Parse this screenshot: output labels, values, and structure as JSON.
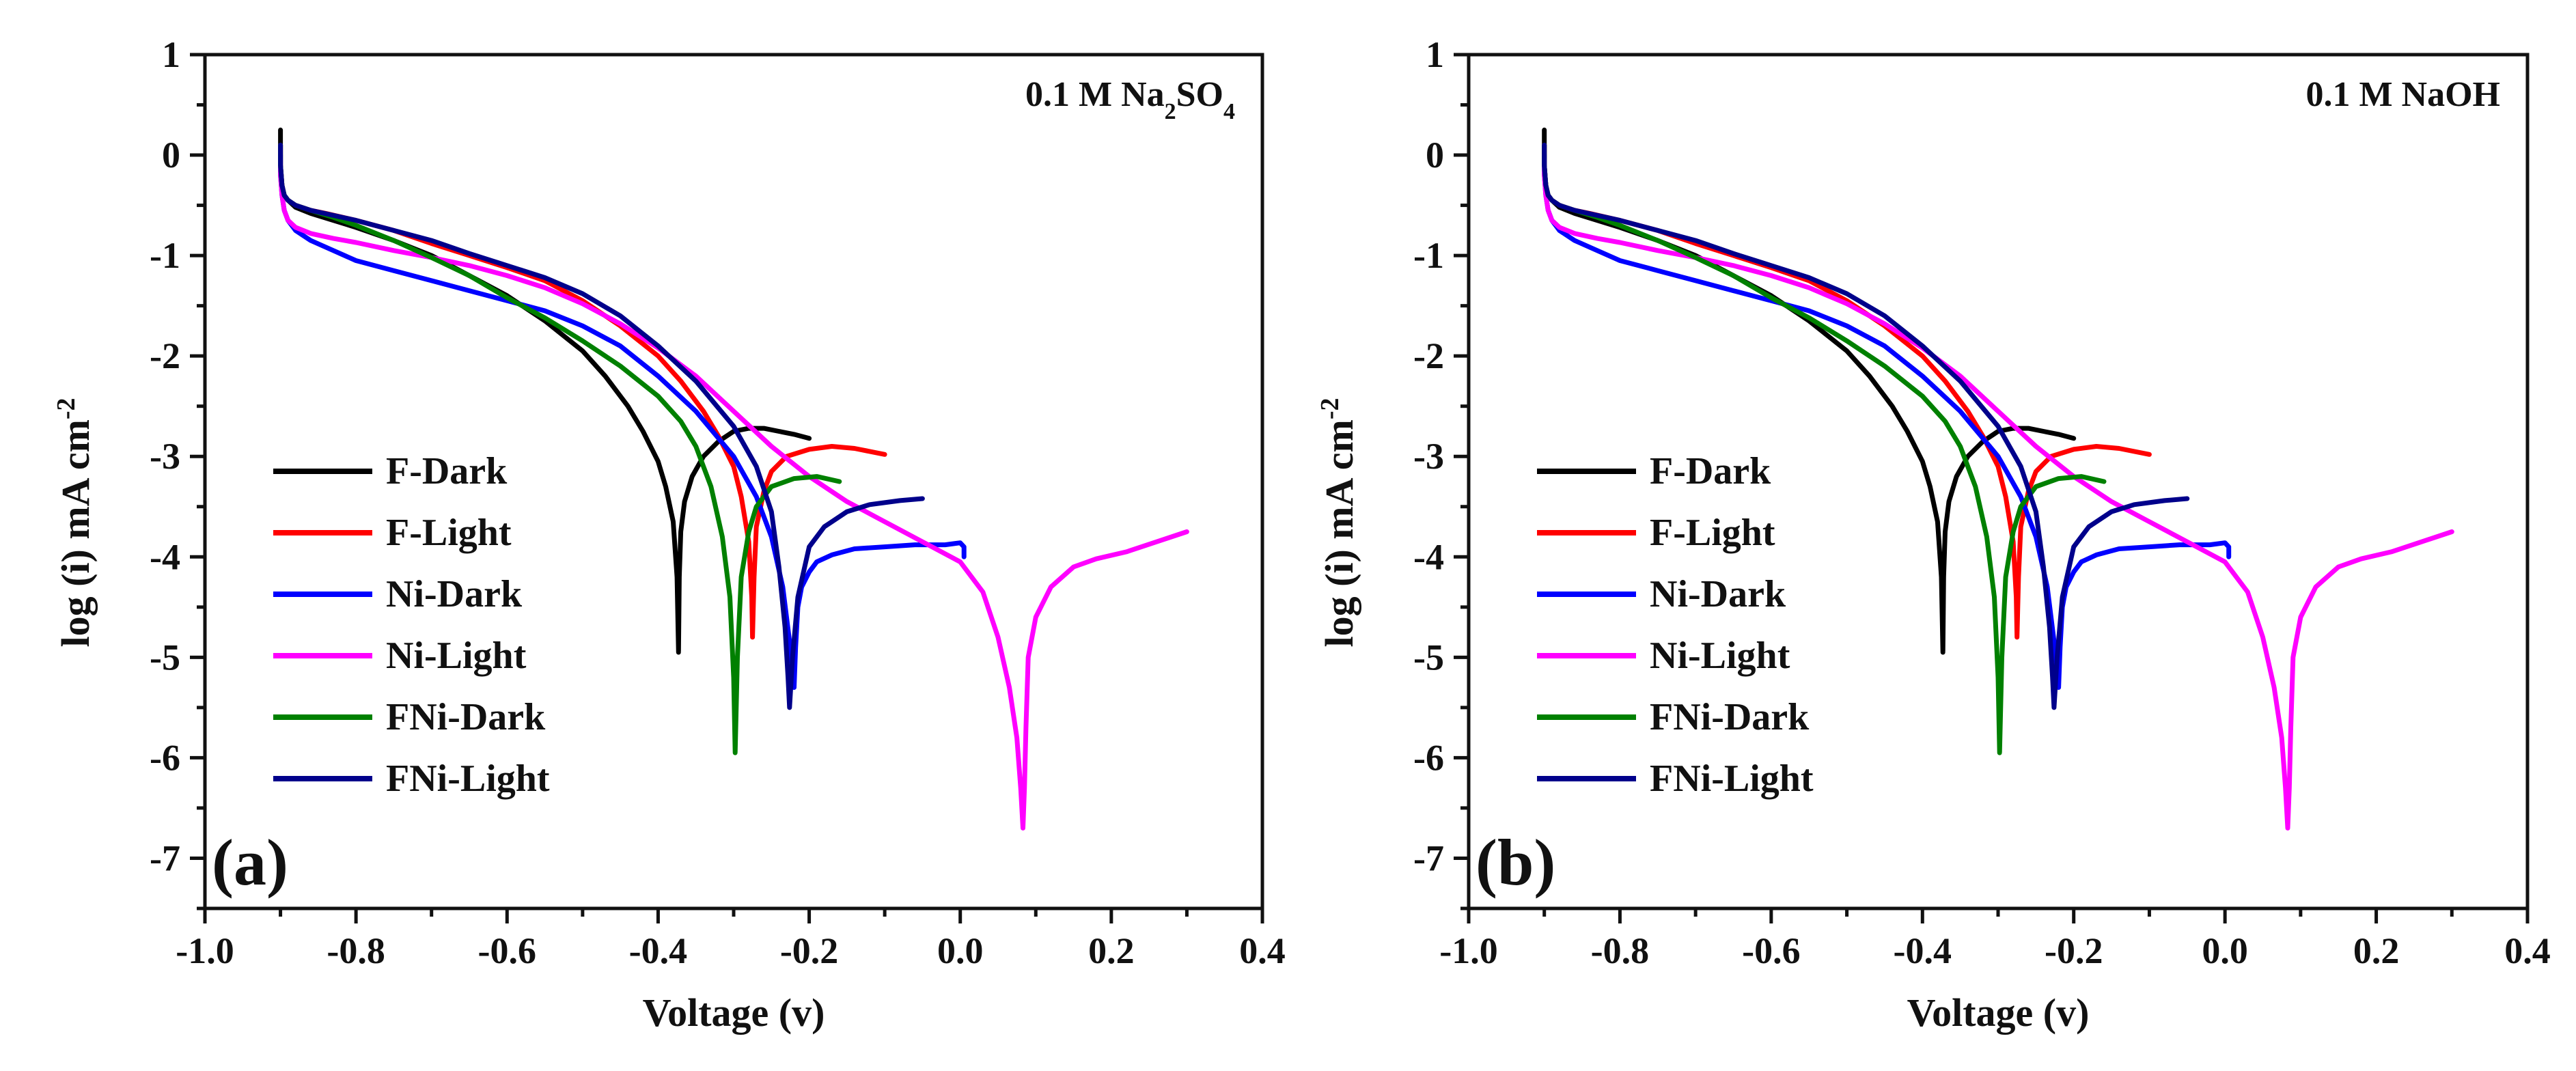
{
  "chart_data": [
    {
      "type": "line",
      "panel_label": "(a)",
      "annotation": {
        "base": "0.1 M Na",
        "sub1": "2",
        "mid": "SO",
        "sub2": "4"
      },
      "xlabel": "Voltage (v)",
      "ylabel": {
        "main": "log (i) mA cm",
        "sup": "-2"
      },
      "xlim": [
        -1.0,
        0.4
      ],
      "ylim": [
        -7.5,
        1.0
      ],
      "xticks": [
        -1.0,
        -0.8,
        -0.6,
        -0.4,
        -0.2,
        0.0,
        0.2,
        0.4
      ],
      "xtick_labels": [
        "-1.0",
        "-0.8",
        "-0.6",
        "-0.4",
        "-0.2",
        "0.0",
        "0.2",
        "0.4"
      ],
      "yticks": [
        1,
        0,
        -1,
        -2,
        -3,
        -4,
        -5,
        -6,
        -7
      ],
      "ytick_labels": [
        "1",
        "0",
        "-1",
        "-2",
        "-3",
        "-4",
        "-5",
        "-6",
        "-7"
      ],
      "legend_position": "lower-left",
      "series": [
        {
          "name": "F-Dark",
          "color": "#000000",
          "x": [
            -0.9,
            -0.9,
            -0.898,
            -0.895,
            -0.89,
            -0.88,
            -0.86,
            -0.83,
            -0.8,
            -0.75,
            -0.7,
            -0.65,
            -0.6,
            -0.55,
            -0.5,
            -0.47,
            -0.44,
            -0.42,
            -0.4,
            -0.39,
            -0.38,
            -0.375,
            -0.373,
            -0.372,
            -0.37,
            -0.365,
            -0.355,
            -0.34,
            -0.32,
            -0.3,
            -0.28,
            -0.26,
            -0.24,
            -0.22,
            -0.2
          ],
          "y": [
            0.25,
            -0.1,
            -0.3,
            -0.4,
            -0.45,
            -0.52,
            -0.58,
            -0.65,
            -0.72,
            -0.85,
            -1.0,
            -1.2,
            -1.4,
            -1.65,
            -1.95,
            -2.2,
            -2.5,
            -2.75,
            -3.05,
            -3.3,
            -3.65,
            -4.2,
            -4.95,
            -4.2,
            -3.75,
            -3.45,
            -3.2,
            -3.0,
            -2.85,
            -2.75,
            -2.72,
            -2.72,
            -2.75,
            -2.78,
            -2.82
          ]
        },
        {
          "name": "F-Light",
          "color": "#ff0000",
          "x": [
            -0.9,
            -0.9,
            -0.898,
            -0.895,
            -0.89,
            -0.88,
            -0.86,
            -0.84,
            -0.8,
            -0.75,
            -0.7,
            -0.65,
            -0.6,
            -0.55,
            -0.5,
            -0.45,
            -0.4,
            -0.37,
            -0.34,
            -0.32,
            -0.3,
            -0.29,
            -0.28,
            -0.276,
            -0.275,
            -0.273,
            -0.27,
            -0.26,
            -0.25,
            -0.23,
            -0.2,
            -0.17,
            -0.14,
            -0.1
          ],
          "y": [
            0.1,
            -0.1,
            -0.3,
            -0.4,
            -0.45,
            -0.5,
            -0.55,
            -0.58,
            -0.65,
            -0.75,
            -0.88,
            -1.0,
            -1.12,
            -1.25,
            -1.45,
            -1.7,
            -2.0,
            -2.25,
            -2.55,
            -2.8,
            -3.1,
            -3.4,
            -3.85,
            -4.4,
            -4.8,
            -4.2,
            -3.7,
            -3.35,
            -3.15,
            -3.0,
            -2.93,
            -2.9,
            -2.92,
            -2.98
          ]
        },
        {
          "name": "Ni-Dark",
          "color": "#0000ff",
          "x": [
            -0.9,
            -0.9,
            -0.898,
            -0.895,
            -0.89,
            -0.88,
            -0.86,
            -0.83,
            -0.8,
            -0.75,
            -0.7,
            -0.65,
            -0.6,
            -0.55,
            -0.5,
            -0.45,
            -0.4,
            -0.35,
            -0.3,
            -0.27,
            -0.25,
            -0.235,
            -0.225,
            -0.22,
            -0.218,
            -0.215,
            -0.21,
            -0.2,
            -0.19,
            -0.17,
            -0.14,
            -0.1,
            -0.06,
            -0.02,
            0.0,
            0.005,
            0.005
          ],
          "y": [
            0.0,
            -0.2,
            -0.4,
            -0.55,
            -0.65,
            -0.75,
            -0.85,
            -0.95,
            -1.05,
            -1.15,
            -1.25,
            -1.35,
            -1.45,
            -1.55,
            -1.7,
            -1.9,
            -2.2,
            -2.55,
            -3.0,
            -3.4,
            -3.8,
            -4.3,
            -4.9,
            -5.3,
            -4.9,
            -4.5,
            -4.3,
            -4.15,
            -4.05,
            -3.98,
            -3.92,
            -3.9,
            -3.88,
            -3.88,
            -3.86,
            -3.9,
            -4.0
          ]
        },
        {
          "name": "Ni-Light",
          "color": "#ff00ff",
          "x": [
            -0.9,
            -0.9,
            -0.898,
            -0.895,
            -0.89,
            -0.88,
            -0.86,
            -0.83,
            -0.8,
            -0.75,
            -0.7,
            -0.65,
            -0.6,
            -0.55,
            -0.5,
            -0.45,
            -0.4,
            -0.35,
            -0.3,
            -0.25,
            -0.2,
            -0.15,
            -0.1,
            -0.05,
            0.0,
            0.03,
            0.05,
            0.065,
            0.075,
            0.08,
            0.083,
            0.085,
            0.087,
            0.09,
            0.1,
            0.12,
            0.15,
            0.18,
            0.22,
            0.26,
            0.3
          ],
          "y": [
            -0.05,
            -0.2,
            -0.4,
            -0.55,
            -0.65,
            -0.72,
            -0.78,
            -0.83,
            -0.87,
            -0.95,
            -1.02,
            -1.1,
            -1.2,
            -1.32,
            -1.48,
            -1.68,
            -1.92,
            -2.2,
            -2.55,
            -2.9,
            -3.2,
            -3.45,
            -3.65,
            -3.85,
            -4.05,
            -4.35,
            -4.8,
            -5.3,
            -5.8,
            -6.3,
            -6.7,
            -6.3,
            -5.7,
            -5.0,
            -4.6,
            -4.3,
            -4.1,
            -4.02,
            -3.95,
            -3.85,
            -3.75
          ]
        },
        {
          "name": "FNi-Dark",
          "color": "#008000",
          "x": [
            -0.9,
            -0.9,
            -0.898,
            -0.895,
            -0.89,
            -0.88,
            -0.86,
            -0.83,
            -0.8,
            -0.75,
            -0.7,
            -0.65,
            -0.6,
            -0.55,
            -0.5,
            -0.45,
            -0.4,
            -0.37,
            -0.35,
            -0.33,
            -0.315,
            -0.305,
            -0.3,
            -0.298,
            -0.295,
            -0.29,
            -0.28,
            -0.27,
            -0.25,
            -0.22,
            -0.19,
            -0.16
          ],
          "y": [
            0.1,
            -0.1,
            -0.3,
            -0.4,
            -0.45,
            -0.5,
            -0.55,
            -0.62,
            -0.7,
            -0.85,
            -1.02,
            -1.2,
            -1.42,
            -1.62,
            -1.85,
            -2.1,
            -2.4,
            -2.65,
            -2.9,
            -3.3,
            -3.8,
            -4.4,
            -5.2,
            -5.95,
            -5.0,
            -4.2,
            -3.75,
            -3.5,
            -3.3,
            -3.22,
            -3.2,
            -3.25
          ]
        },
        {
          "name": "FNi-Light",
          "color": "#00008b",
          "x": [
            -0.9,
            -0.9,
            -0.898,
            -0.895,
            -0.89,
            -0.88,
            -0.86,
            -0.83,
            -0.8,
            -0.75,
            -0.7,
            -0.65,
            -0.6,
            -0.55,
            -0.5,
            -0.45,
            -0.4,
            -0.35,
            -0.3,
            -0.27,
            -0.25,
            -0.24,
            -0.232,
            -0.228,
            -0.226,
            -0.222,
            -0.215,
            -0.2,
            -0.18,
            -0.15,
            -0.12,
            -0.08,
            -0.05
          ],
          "y": [
            0.1,
            -0.1,
            -0.3,
            -0.4,
            -0.45,
            -0.5,
            -0.55,
            -0.6,
            -0.65,
            -0.75,
            -0.85,
            -0.98,
            -1.1,
            -1.22,
            -1.38,
            -1.6,
            -1.9,
            -2.25,
            -2.7,
            -3.1,
            -3.55,
            -4.1,
            -4.7,
            -5.2,
            -5.5,
            -5.0,
            -4.4,
            -3.9,
            -3.7,
            -3.55,
            -3.48,
            -3.44,
            -3.42
          ]
        }
      ]
    },
    {
      "type": "line",
      "panel_label": "(b)",
      "annotation": {
        "base": "0.1 M NaOH",
        "sub1": "",
        "mid": "",
        "sub2": ""
      },
      "xlabel": "Voltage (v)",
      "ylabel": {
        "main": "log (i) mA cm",
        "sup": "-2"
      },
      "xlim": [
        -1.0,
        0.4
      ],
      "ylim": [
        -7.5,
        1.0
      ],
      "xticks": [
        -1.0,
        -0.8,
        -0.6,
        -0.4,
        -0.2,
        0.0,
        0.2,
        0.4
      ],
      "xtick_labels": [
        "-1.0",
        "-0.8",
        "-0.6",
        "-0.4",
        "-0.2",
        "0.0",
        "0.2",
        "0.4"
      ],
      "yticks": [
        1,
        0,
        -1,
        -2,
        -3,
        -4,
        -5,
        -6,
        -7
      ],
      "ytick_labels": [
        "1",
        "0",
        "-1",
        "-2",
        "-3",
        "-4",
        "-5",
        "-6",
        "-7"
      ],
      "legend_position": "lower-left",
      "series": [
        {
          "name": "F-Dark",
          "color": "#000000",
          "x": [
            -0.9,
            -0.9,
            -0.898,
            -0.895,
            -0.89,
            -0.88,
            -0.86,
            -0.83,
            -0.8,
            -0.75,
            -0.7,
            -0.65,
            -0.6,
            -0.55,
            -0.5,
            -0.47,
            -0.44,
            -0.42,
            -0.4,
            -0.39,
            -0.38,
            -0.375,
            -0.373,
            -0.372,
            -0.37,
            -0.365,
            -0.355,
            -0.34,
            -0.32,
            -0.3,
            -0.28,
            -0.26,
            -0.24,
            -0.22,
            -0.2
          ],
          "y": [
            0.25,
            -0.1,
            -0.3,
            -0.4,
            -0.45,
            -0.52,
            -0.58,
            -0.65,
            -0.72,
            -0.85,
            -1.0,
            -1.2,
            -1.4,
            -1.65,
            -1.95,
            -2.2,
            -2.5,
            -2.75,
            -3.05,
            -3.3,
            -3.65,
            -4.2,
            -4.95,
            -4.2,
            -3.75,
            -3.45,
            -3.2,
            -3.0,
            -2.85,
            -2.75,
            -2.72,
            -2.72,
            -2.75,
            -2.78,
            -2.82
          ]
        },
        {
          "name": "F-Light",
          "color": "#ff0000",
          "x": [
            -0.9,
            -0.9,
            -0.898,
            -0.895,
            -0.89,
            -0.88,
            -0.86,
            -0.84,
            -0.8,
            -0.75,
            -0.7,
            -0.65,
            -0.6,
            -0.55,
            -0.5,
            -0.45,
            -0.4,
            -0.37,
            -0.34,
            -0.32,
            -0.3,
            -0.29,
            -0.28,
            -0.276,
            -0.275,
            -0.273,
            -0.27,
            -0.26,
            -0.25,
            -0.23,
            -0.2,
            -0.17,
            -0.14,
            -0.1
          ],
          "y": [
            0.1,
            -0.1,
            -0.3,
            -0.4,
            -0.45,
            -0.5,
            -0.55,
            -0.58,
            -0.65,
            -0.75,
            -0.88,
            -1.0,
            -1.12,
            -1.25,
            -1.45,
            -1.7,
            -2.0,
            -2.25,
            -2.55,
            -2.8,
            -3.1,
            -3.4,
            -3.85,
            -4.4,
            -4.8,
            -4.2,
            -3.7,
            -3.35,
            -3.15,
            -3.0,
            -2.93,
            -2.9,
            -2.92,
            -2.98
          ]
        },
        {
          "name": "Ni-Dark",
          "color": "#0000ff",
          "x": [
            -0.9,
            -0.9,
            -0.898,
            -0.895,
            -0.89,
            -0.88,
            -0.86,
            -0.83,
            -0.8,
            -0.75,
            -0.7,
            -0.65,
            -0.6,
            -0.55,
            -0.5,
            -0.45,
            -0.4,
            -0.35,
            -0.3,
            -0.27,
            -0.25,
            -0.235,
            -0.225,
            -0.22,
            -0.218,
            -0.215,
            -0.21,
            -0.2,
            -0.19,
            -0.17,
            -0.14,
            -0.1,
            -0.06,
            -0.02,
            0.0,
            0.005,
            0.005
          ],
          "y": [
            0.0,
            -0.2,
            -0.4,
            -0.55,
            -0.65,
            -0.75,
            -0.85,
            -0.95,
            -1.05,
            -1.15,
            -1.25,
            -1.35,
            -1.45,
            -1.55,
            -1.7,
            -1.9,
            -2.2,
            -2.55,
            -3.0,
            -3.4,
            -3.8,
            -4.3,
            -4.9,
            -5.3,
            -4.9,
            -4.5,
            -4.3,
            -4.15,
            -4.05,
            -3.98,
            -3.92,
            -3.9,
            -3.88,
            -3.88,
            -3.86,
            -3.9,
            -4.0
          ]
        },
        {
          "name": "Ni-Light",
          "color": "#ff00ff",
          "x": [
            -0.9,
            -0.9,
            -0.898,
            -0.895,
            -0.89,
            -0.88,
            -0.86,
            -0.83,
            -0.8,
            -0.75,
            -0.7,
            -0.65,
            -0.6,
            -0.55,
            -0.5,
            -0.45,
            -0.4,
            -0.35,
            -0.3,
            -0.25,
            -0.2,
            -0.15,
            -0.1,
            -0.05,
            0.0,
            0.03,
            0.05,
            0.065,
            0.075,
            0.08,
            0.083,
            0.085,
            0.087,
            0.09,
            0.1,
            0.12,
            0.15,
            0.18,
            0.22,
            0.26,
            0.3
          ],
          "y": [
            -0.05,
            -0.2,
            -0.4,
            -0.55,
            -0.65,
            -0.72,
            -0.78,
            -0.83,
            -0.87,
            -0.95,
            -1.02,
            -1.1,
            -1.2,
            -1.32,
            -1.48,
            -1.68,
            -1.92,
            -2.2,
            -2.55,
            -2.9,
            -3.2,
            -3.45,
            -3.65,
            -3.85,
            -4.05,
            -4.35,
            -4.8,
            -5.3,
            -5.8,
            -6.3,
            -6.7,
            -6.3,
            -5.7,
            -5.0,
            -4.6,
            -4.3,
            -4.1,
            -4.02,
            -3.95,
            -3.85,
            -3.75
          ]
        },
        {
          "name": "FNi-Dark",
          "color": "#008000",
          "x": [
            -0.9,
            -0.9,
            -0.898,
            -0.895,
            -0.89,
            -0.88,
            -0.86,
            -0.83,
            -0.8,
            -0.75,
            -0.7,
            -0.65,
            -0.6,
            -0.55,
            -0.5,
            -0.45,
            -0.4,
            -0.37,
            -0.35,
            -0.33,
            -0.315,
            -0.305,
            -0.3,
            -0.298,
            -0.295,
            -0.29,
            -0.28,
            -0.27,
            -0.25,
            -0.22,
            -0.19,
            -0.16
          ],
          "y": [
            0.1,
            -0.1,
            -0.3,
            -0.4,
            -0.45,
            -0.5,
            -0.55,
            -0.62,
            -0.7,
            -0.85,
            -1.02,
            -1.2,
            -1.42,
            -1.62,
            -1.85,
            -2.1,
            -2.4,
            -2.65,
            -2.9,
            -3.3,
            -3.8,
            -4.4,
            -5.2,
            -5.95,
            -5.0,
            -4.2,
            -3.75,
            -3.5,
            -3.3,
            -3.22,
            -3.2,
            -3.25
          ]
        },
        {
          "name": "FNi-Light",
          "color": "#00008b",
          "x": [
            -0.9,
            -0.9,
            -0.898,
            -0.895,
            -0.89,
            -0.88,
            -0.86,
            -0.83,
            -0.8,
            -0.75,
            -0.7,
            -0.65,
            -0.6,
            -0.55,
            -0.5,
            -0.45,
            -0.4,
            -0.35,
            -0.3,
            -0.27,
            -0.25,
            -0.24,
            -0.232,
            -0.228,
            -0.226,
            -0.222,
            -0.215,
            -0.2,
            -0.18,
            -0.15,
            -0.12,
            -0.08,
            -0.05
          ],
          "y": [
            0.1,
            -0.1,
            -0.3,
            -0.4,
            -0.45,
            -0.5,
            -0.55,
            -0.6,
            -0.65,
            -0.75,
            -0.85,
            -0.98,
            -1.1,
            -1.22,
            -1.38,
            -1.6,
            -1.9,
            -2.25,
            -2.7,
            -3.1,
            -3.55,
            -4.1,
            -4.7,
            -5.2,
            -5.5,
            -5.0,
            -4.4,
            -3.9,
            -3.7,
            -3.55,
            -3.48,
            -3.44,
            -3.42
          ]
        }
      ]
    }
  ]
}
